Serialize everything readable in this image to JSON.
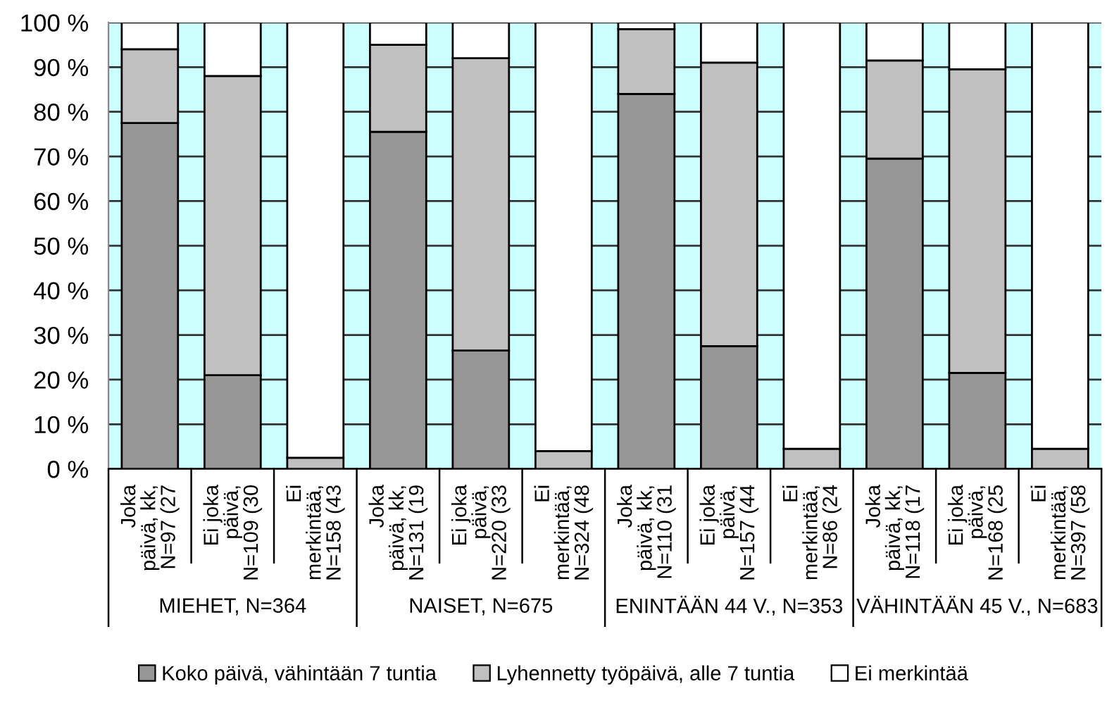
{
  "chart_data": {
    "type": "bar",
    "stacked": true,
    "categories": [
      "Joka\npäivä, kk,\nN=97 (27",
      "Ei joka\npäivä,\nN=109 (30",
      "Ei\nmerkintää,\nN=158 (43",
      "Joka\npäivä, kk,\nN=131 (19",
      "Ei joka\npäivä,\nN=220 (33",
      "Ei\nmerkintää,\nN=324 (48",
      "Joka\npäivä, kk,\nN=110 (31",
      "Ei joka\npäivä,\nN=157 (44",
      "Ei\nmerkintää,\nN=86 (24",
      "Joka\npäivä, kk,\nN=118 (17",
      "Ei joka\npäivä,\nN=168 (25",
      "Ei\nmerkintää,\nN=397 (58"
    ],
    "series": [
      {
        "name": "Koko päivä, vähintään 7 tuntia",
        "color": "#969696",
        "values": [
          77.5,
          21,
          0,
          75.5,
          26.5,
          null,
          84,
          27.5,
          0,
          69.5,
          21.5,
          null
        ]
      },
      {
        "name": "Lyhennetty työpäivä, alle 7 tuntia",
        "color": "#c0c0c0",
        "values": [
          16.5,
          67,
          2.5,
          19.5,
          65.5,
          4,
          14.5,
          63.5,
          4.5,
          22,
          68,
          4.5
        ]
      },
      {
        "name": "Ei merkintää",
        "color": "#ffffff",
        "values": [
          6,
          12,
          97.5,
          5,
          8,
          96,
          1.5,
          9,
          95.5,
          8.5,
          10.5,
          95.5
        ]
      }
    ],
    "annotations": [
      "MIEHET, N=364",
      "NAISET, N=675",
      "ENINTÄÄN 44 V., N=353",
      "VÄHINTÄÄN 45 V., N=683"
    ],
    "ylim": [
      0,
      100
    ],
    "yticks": [
      {
        "value": 0,
        "label": "0 %"
      },
      {
        "value": 10,
        "label": "10 %"
      },
      {
        "value": 20,
        "label": "20 %"
      },
      {
        "value": 30,
        "label": "30 %"
      },
      {
        "value": 40,
        "label": "40 %"
      },
      {
        "value": 50,
        "label": "50 %"
      },
      {
        "value": 60,
        "label": "60 %"
      },
      {
        "value": 70,
        "label": "70 %"
      },
      {
        "value": 80,
        "label": "80 %"
      },
      {
        "value": 90,
        "label": "90 %"
      },
      {
        "value": 100,
        "label": "100 %"
      }
    ],
    "grid": "y",
    "legend": "bottom"
  }
}
